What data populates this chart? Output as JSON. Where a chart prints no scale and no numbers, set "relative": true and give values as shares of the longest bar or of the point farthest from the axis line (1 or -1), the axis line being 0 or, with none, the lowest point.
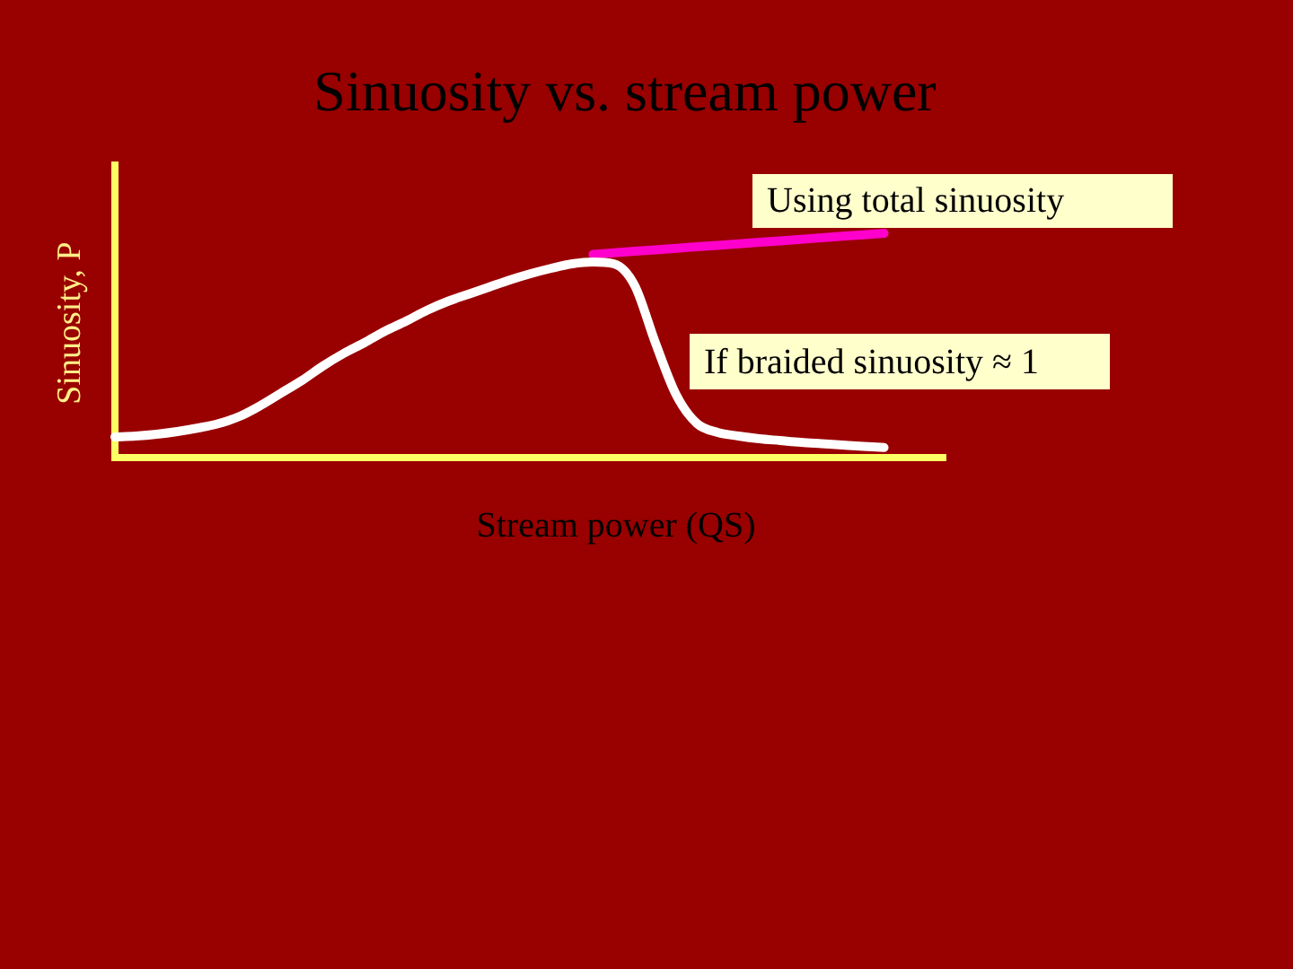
{
  "chart_data": {
    "type": "line",
    "title": "Sinuosity vs. stream power",
    "xlabel": "Stream power (QS)",
    "ylabel": "Sinuosity, P",
    "relative": true,
    "marker": "none",
    "annotations": [
      "Using total sinuosity",
      "If braided sinuosity ≈ 1"
    ],
    "categories": [
      null,
      null,
      null,
      null,
      null,
      null,
      null,
      null,
      null,
      null,
      null,
      null,
      null,
      null,
      null,
      null,
      null,
      null,
      null,
      null,
      null,
      null,
      null,
      null,
      null,
      null,
      null,
      null,
      null,
      null,
      null,
      null,
      null,
      null,
      null,
      null,
      null,
      null,
      null,
      null,
      null
    ],
    "series": [
      {
        "color": "#ffffff",
        "values": [
          0.092,
          0.096,
          0.104,
          0.116,
          0.132,
          0.152,
          0.184,
          0.232,
          0.288,
          0.344,
          0.408,
          0.464,
          0.512,
          0.564,
          0.608,
          0.656,
          0.696,
          0.728,
          0.76,
          0.792,
          0.82,
          0.844,
          0.864,
          0.872,
          0.864,
          0.768,
          0.512,
          0.28,
          0.152,
          0.112,
          0.096,
          0.084,
          0.076,
          0.068,
          0.062,
          0.056,
          0.05,
          0.045,
          null,
          null,
          null
        ]
      },
      {
        "color": "#ff00cc",
        "values": [
          null,
          null,
          null,
          null,
          null,
          null,
          null,
          null,
          null,
          null,
          null,
          null,
          null,
          null,
          null,
          null,
          null,
          null,
          null,
          null,
          null,
          null,
          null,
          0.906,
          0.913,
          0.92,
          0.926,
          0.933,
          0.94,
          0.946,
          0.953,
          0.96,
          0.966,
          0.973,
          0.98,
          0.987,
          0.993,
          1,
          null,
          null,
          null
        ]
      }
    ]
  }
}
